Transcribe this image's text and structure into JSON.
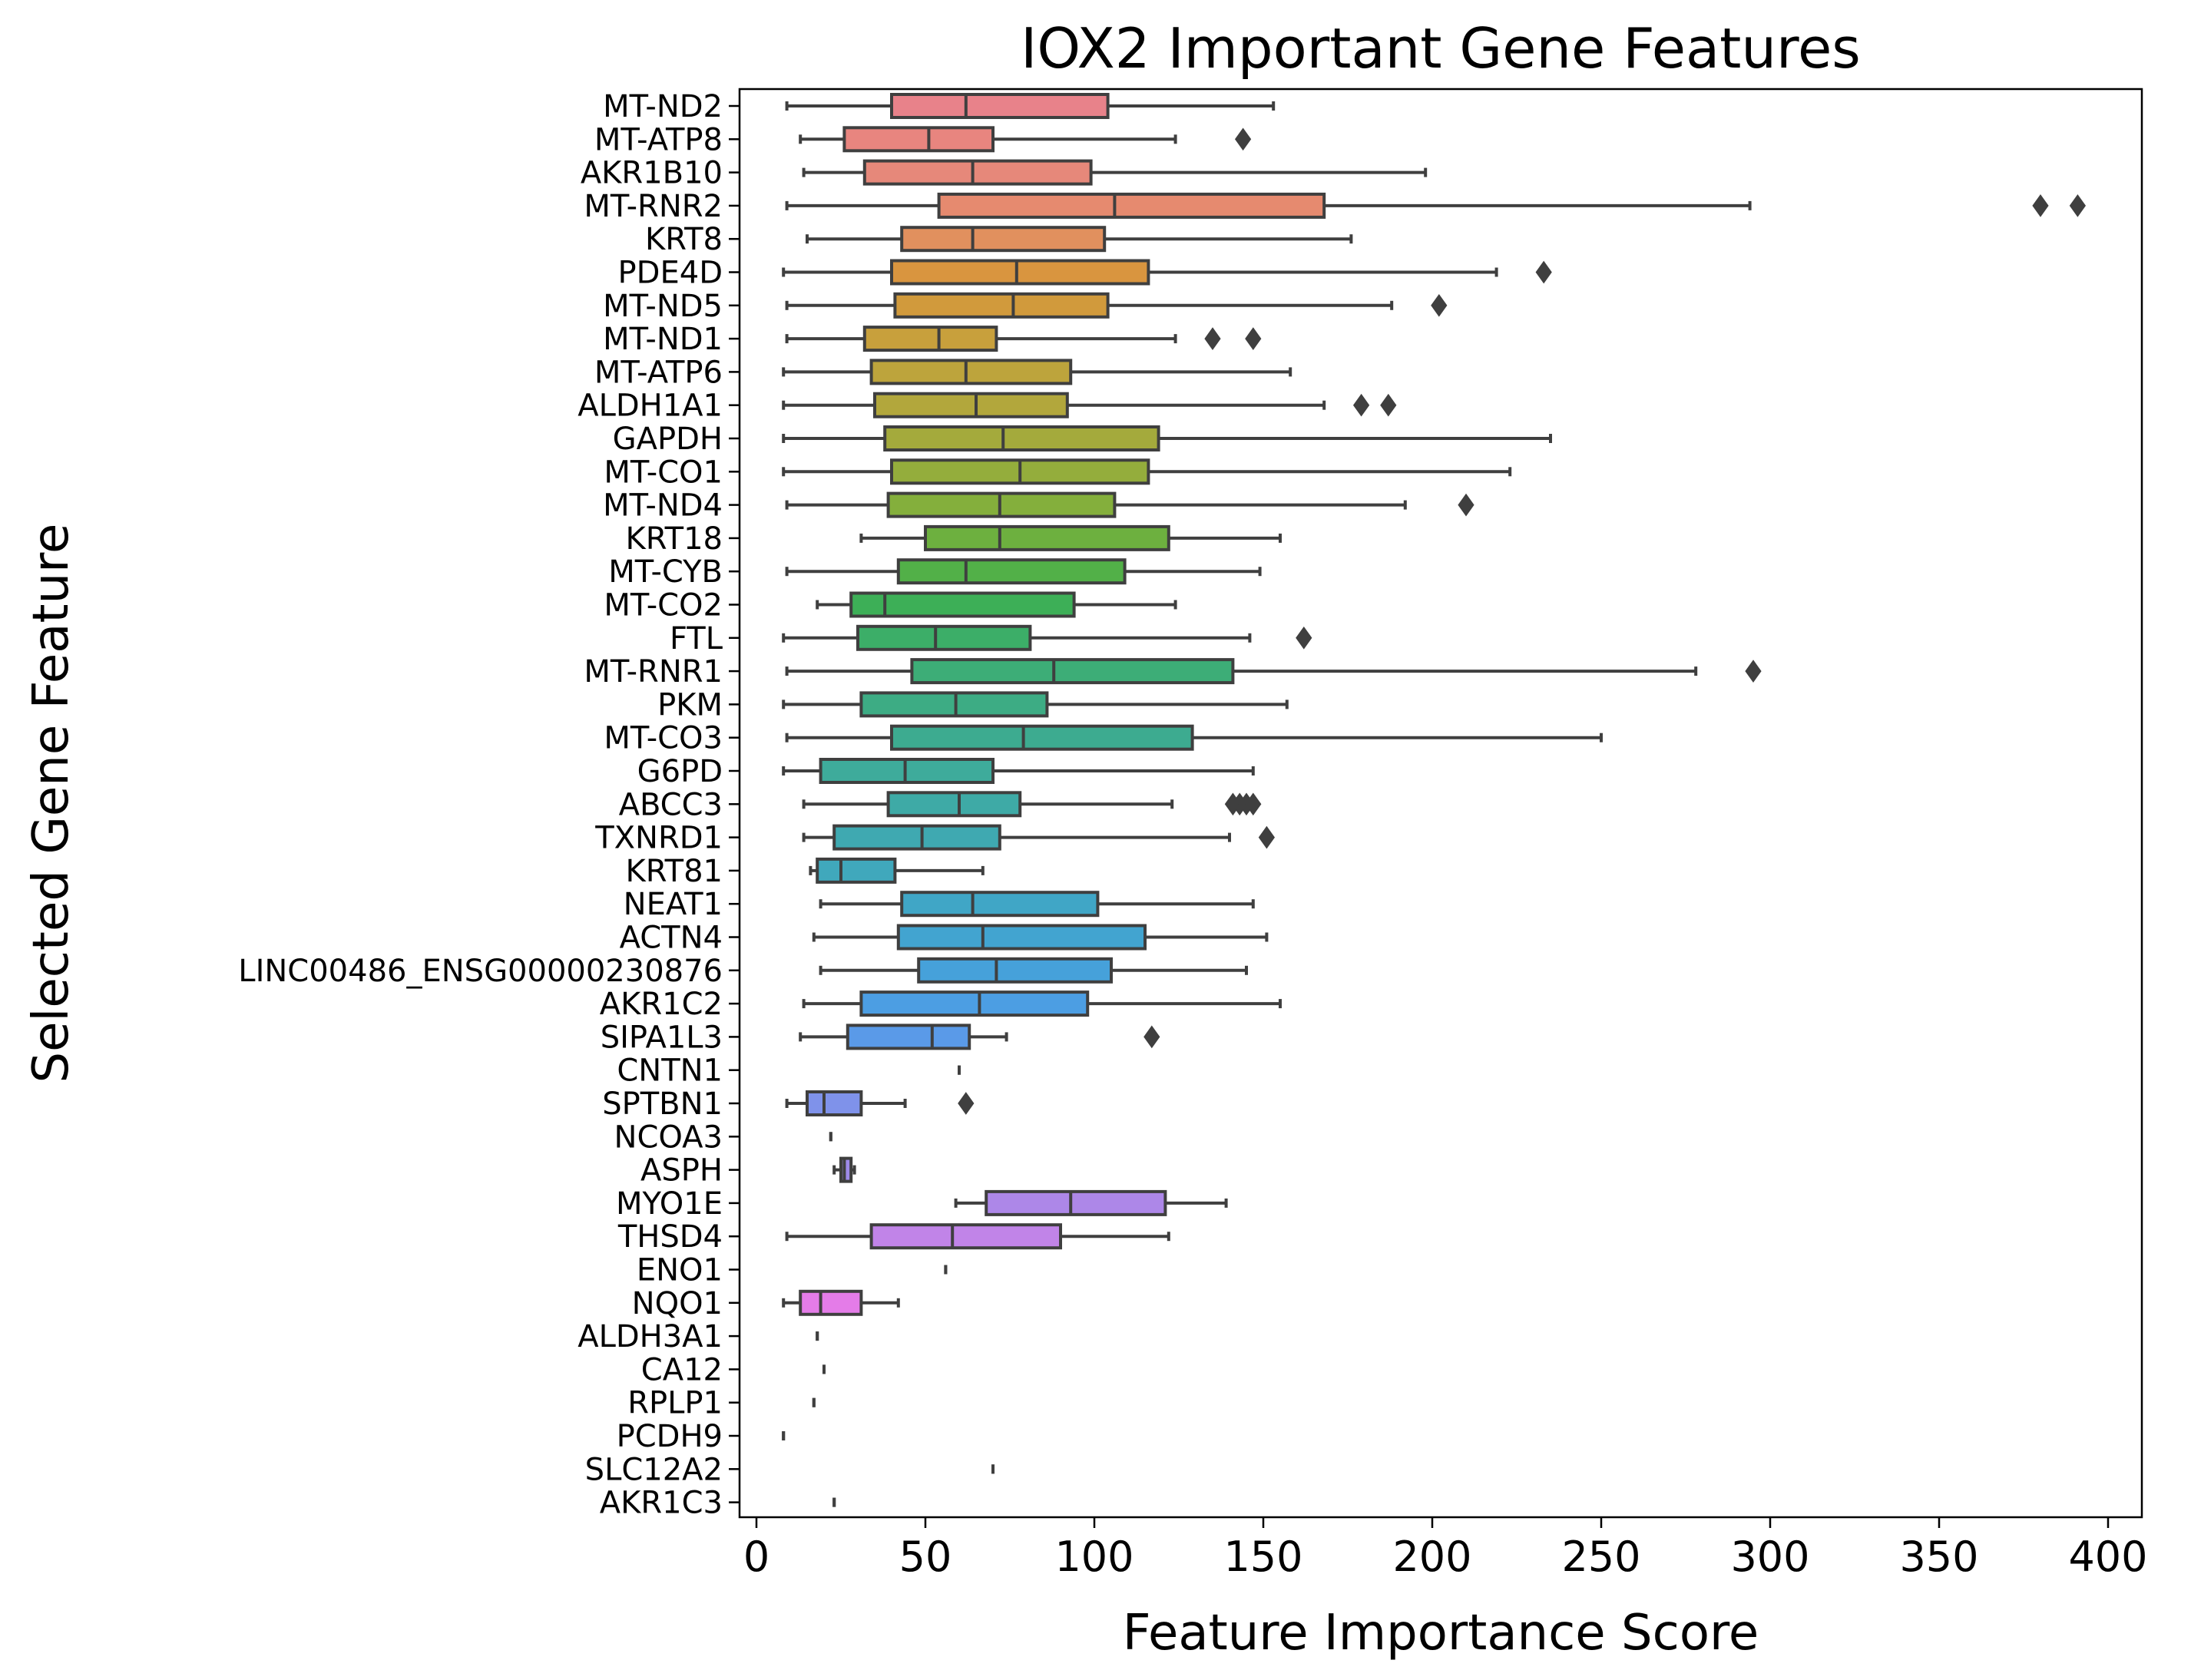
{
  "chart_data": {
    "type": "box",
    "orientation": "horizontal",
    "title": "IOX2 Important Gene Features",
    "xlabel": "Feature Importance Score",
    "ylabel": "Selected Gene Feature",
    "xlim": [
      -5,
      410
    ],
    "xticks": [
      0,
      50,
      100,
      150,
      200,
      250,
      300,
      350,
      400
    ],
    "grid": false,
    "legend": "none",
    "line_color": "#3f3f3f",
    "boxes": [
      {
        "label": "MT-ND2",
        "whisker_low": 9,
        "q1": 40,
        "median": 62,
        "q3": 104,
        "whisker_high": 153,
        "outliers": [],
        "color": "#e8828a"
      },
      {
        "label": "MT-ATP8",
        "whisker_low": 13,
        "q1": 26,
        "median": 51,
        "q3": 70,
        "whisker_high": 124,
        "outliers": [
          144
        ],
        "color": "#e8857f"
      },
      {
        "label": "AKR1B10",
        "whisker_low": 14,
        "q1": 32,
        "median": 64,
        "q3": 99,
        "whisker_high": 198,
        "outliers": [],
        "color": "#e6887a"
      },
      {
        "label": "MT-RNR2",
        "whisker_low": 9,
        "q1": 54,
        "median": 106,
        "q3": 168,
        "whisker_high": 294,
        "outliers": [
          380,
          391
        ],
        "color": "#e68a6f"
      },
      {
        "label": "KRT8",
        "whisker_low": 15,
        "q1": 43,
        "median": 64,
        "q3": 103,
        "whisker_high": 176,
        "outliers": [],
        "color": "#e1905e"
      },
      {
        "label": "PDE4D",
        "whisker_low": 8,
        "q1": 40,
        "median": 77,
        "q3": 116,
        "whisker_high": 219,
        "outliers": [
          233
        ],
        "color": "#d9953f"
      },
      {
        "label": "MT-ND5",
        "whisker_low": 9,
        "q1": 41,
        "median": 76,
        "q3": 104,
        "whisker_high": 188,
        "outliers": [
          202
        ],
        "color": "#d19a3c"
      },
      {
        "label": "MT-ND1",
        "whisker_low": 9,
        "q1": 32,
        "median": 54,
        "q3": 71,
        "whisker_high": 124,
        "outliers": [
          135,
          147
        ],
        "color": "#c8a03c"
      },
      {
        "label": "MT-ATP6",
        "whisker_low": 8,
        "q1": 34,
        "median": 62,
        "q3": 93,
        "whisker_high": 158,
        "outliers": [],
        "color": "#bda43c"
      },
      {
        "label": "ALDH1A1",
        "whisker_low": 8,
        "q1": 35,
        "median": 65,
        "q3": 92,
        "whisker_high": 168,
        "outliers": [
          179,
          187
        ],
        "color": "#b2a73c"
      },
      {
        "label": "GAPDH",
        "whisker_low": 8,
        "q1": 38,
        "median": 73,
        "q3": 119,
        "whisker_high": 235,
        "outliers": [],
        "color": "#a4aa3c"
      },
      {
        "label": "MT-CO1",
        "whisker_low": 8,
        "q1": 40,
        "median": 78,
        "q3": 116,
        "whisker_high": 223,
        "outliers": [],
        "color": "#94ad3c"
      },
      {
        "label": "MT-ND4",
        "whisker_low": 9,
        "q1": 39,
        "median": 72,
        "q3": 106,
        "whisker_high": 192,
        "outliers": [
          210
        ],
        "color": "#84af3c"
      },
      {
        "label": "KRT18",
        "whisker_low": 31,
        "q1": 50,
        "median": 72,
        "q3": 122,
        "whisker_high": 155,
        "outliers": [],
        "color": "#6db03f"
      },
      {
        "label": "MT-CYB",
        "whisker_low": 9,
        "q1": 42,
        "median": 62,
        "q3": 109,
        "whisker_high": 149,
        "outliers": [],
        "color": "#52b048"
      },
      {
        "label": "MT-CO2",
        "whisker_low": 18,
        "q1": 28,
        "median": 38,
        "q3": 94,
        "whisker_high": 124,
        "outliers": [],
        "color": "#3daf57"
      },
      {
        "label": "FTL",
        "whisker_low": 8,
        "q1": 30,
        "median": 53,
        "q3": 81,
        "whisker_high": 146,
        "outliers": [
          162
        ],
        "color": "#3cae68"
      },
      {
        "label": "MT-RNR1",
        "whisker_low": 9,
        "q1": 46,
        "median": 88,
        "q3": 141,
        "whisker_high": 278,
        "outliers": [
          295
        ],
        "color": "#3dad77"
      },
      {
        "label": "PKM",
        "whisker_low": 8,
        "q1": 31,
        "median": 59,
        "q3": 86,
        "whisker_high": 157,
        "outliers": [],
        "color": "#3dac84"
      },
      {
        "label": "MT-CO3",
        "whisker_low": 9,
        "q1": 40,
        "median": 79,
        "q3": 129,
        "whisker_high": 250,
        "outliers": [],
        "color": "#3dab90"
      },
      {
        "label": "G6PD",
        "whisker_low": 8,
        "q1": 19,
        "median": 44,
        "q3": 70,
        "whisker_high": 147,
        "outliers": [],
        "color": "#3eab9b"
      },
      {
        "label": "ABCC3",
        "whisker_low": 14,
        "q1": 39,
        "median": 60,
        "q3": 78,
        "whisker_high": 123,
        "outliers": [
          141,
          143,
          145,
          147
        ],
        "color": "#3eaaa6"
      },
      {
        "label": "TXNRD1",
        "whisker_low": 14,
        "q1": 23,
        "median": 49,
        "q3": 72,
        "whisker_high": 140,
        "outliers": [
          151
        ],
        "color": "#3fa9b1"
      },
      {
        "label": "KRT81",
        "whisker_low": 16,
        "q1": 18,
        "median": 25,
        "q3": 41,
        "whisker_high": 67,
        "outliers": [],
        "color": "#40a8bc"
      },
      {
        "label": "NEAT1",
        "whisker_low": 19,
        "q1": 43,
        "median": 64,
        "q3": 101,
        "whisker_high": 147,
        "outliers": [],
        "color": "#40a6c6"
      },
      {
        "label": "ACTN4",
        "whisker_low": 17,
        "q1": 42,
        "median": 67,
        "q3": 115,
        "whisker_high": 151,
        "outliers": [],
        "color": "#42a4d0"
      },
      {
        "label": "LINC00486_ENSG00000230876",
        "whisker_low": 19,
        "q1": 48,
        "median": 71,
        "q3": 105,
        "whisker_high": 145,
        "outliers": [],
        "color": "#46a1da"
      },
      {
        "label": "AKR1C2",
        "whisker_low": 14,
        "q1": 31,
        "median": 66,
        "q3": 98,
        "whisker_high": 155,
        "outliers": [],
        "color": "#4c9ee3"
      },
      {
        "label": "SIPA1L3",
        "whisker_low": 13,
        "q1": 27,
        "median": 52,
        "q3": 63,
        "whisker_high": 74,
        "outliers": [
          117
        ],
        "color": "#5a9ae8"
      },
      {
        "label": "CNTN1",
        "whisker_low": 60,
        "q1": 60,
        "median": 60,
        "q3": 60,
        "whisker_high": 60,
        "outliers": [],
        "color": "#6c95ea"
      },
      {
        "label": "SPTBN1",
        "whisker_low": 9,
        "q1": 15,
        "median": 20,
        "q3": 31,
        "whisker_high": 44,
        "outliers": [
          62
        ],
        "color": "#7f92ea"
      },
      {
        "label": "NCOA3",
        "whisker_low": 22,
        "q1": 22,
        "median": 22,
        "q3": 22,
        "whisker_high": 22,
        "outliers": [],
        "color": "#8f8eea"
      },
      {
        "label": "ASPH",
        "whisker_low": 23,
        "q1": 25,
        "median": 26,
        "q3": 28,
        "whisker_high": 29,
        "outliers": [],
        "color": "#9e8ae9"
      },
      {
        "label": "MYO1E",
        "whisker_low": 59,
        "q1": 68,
        "median": 93,
        "q3": 121,
        "whisker_high": 139,
        "outliers": [],
        "color": "#ad87e8"
      },
      {
        "label": "THSD4",
        "whisker_low": 9,
        "q1": 34,
        "median": 58,
        "q3": 90,
        "whisker_high": 122,
        "outliers": [],
        "color": "#c184e8"
      },
      {
        "label": "ENO1",
        "whisker_low": 56,
        "q1": 56,
        "median": 56,
        "q3": 56,
        "whisker_high": 56,
        "outliers": [],
        "color": "#d37fe6"
      },
      {
        "label": "NQO1",
        "whisker_low": 8,
        "q1": 13,
        "median": 19,
        "q3": 31,
        "whisker_high": 42,
        "outliers": [],
        "color": "#e47ce8"
      },
      {
        "label": "ALDH3A1",
        "whisker_low": 18,
        "q1": 18,
        "median": 18,
        "q3": 18,
        "whisker_high": 18,
        "outliers": [],
        "color": "#e97fd8"
      },
      {
        "label": "CA12",
        "whisker_low": 20,
        "q1": 20,
        "median": 20,
        "q3": 20,
        "whisker_high": 20,
        "outliers": [],
        "color": "#ea82c8"
      },
      {
        "label": "RPLP1",
        "whisker_low": 17,
        "q1": 17,
        "median": 17,
        "q3": 17,
        "whisker_high": 17,
        "outliers": [],
        "color": "#eb84b8"
      },
      {
        "label": "PCDH9",
        "whisker_low": 8,
        "q1": 8,
        "median": 8,
        "q3": 8,
        "whisker_high": 8,
        "outliers": [],
        "color": "#eb86a8"
      },
      {
        "label": "SLC12A2",
        "whisker_low": 70,
        "q1": 70,
        "median": 70,
        "q3": 70,
        "whisker_high": 70,
        "outliers": [],
        "color": "#ea8899"
      },
      {
        "label": "AKR1C3",
        "whisker_low": 23,
        "q1": 23,
        "median": 23,
        "q3": 23,
        "whisker_high": 23,
        "outliers": [],
        "color": "#e8898e"
      }
    ]
  }
}
